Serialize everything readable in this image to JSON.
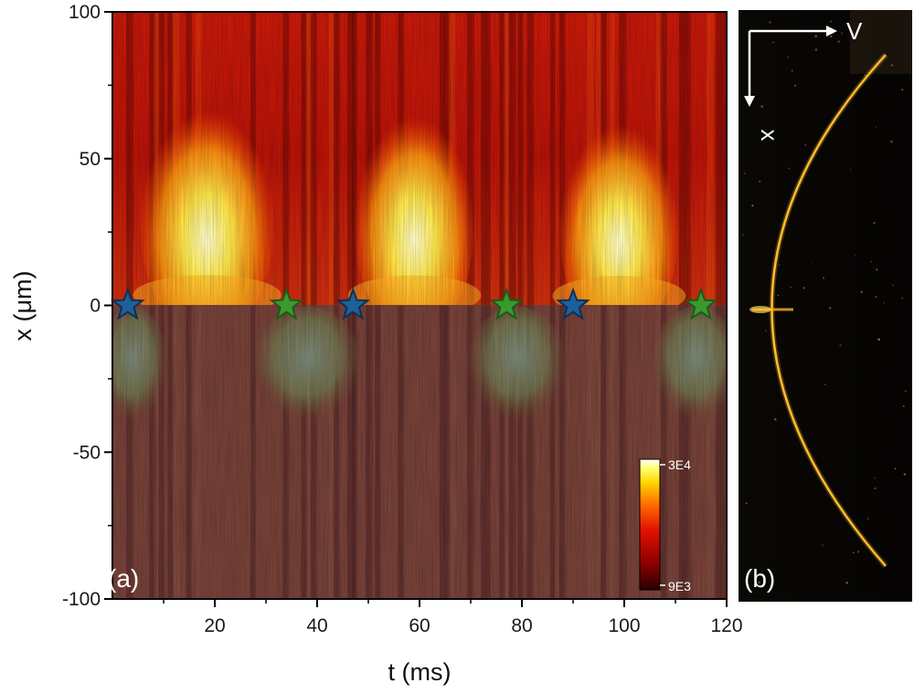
{
  "chart_data": [
    {
      "type": "heatmap",
      "panel_label": "(a)",
      "xlabel": "t (ms)",
      "ylabel": "x (μm)",
      "xlim": [
        0,
        120
      ],
      "ylim": [
        -100,
        100
      ],
      "x_ticks": [
        "20",
        "40",
        "60",
        "80",
        "100",
        "120"
      ],
      "x_tick_values": [
        20,
        40,
        60,
        80,
        100,
        120
      ],
      "y_ticks": [
        "100",
        "50",
        "0",
        "-50",
        "-100"
      ],
      "y_tick_values": [
        100,
        50,
        0,
        -50,
        -100
      ],
      "colorbar": {
        "max_label": "3E4",
        "min_label": "9E3",
        "range": [
          9000,
          30000
        ]
      },
      "lower_half_overlay": "dimmed (x < 0)",
      "bright_regions_x_positive": [
        {
          "t_range": [
            9,
            28
          ],
          "x_range": [
            0,
            60
          ]
        },
        {
          "t_range": [
            51,
            67
          ],
          "x_range": [
            0,
            58
          ]
        },
        {
          "t_range": [
            91,
            107
          ],
          "x_range": [
            0,
            55
          ]
        }
      ],
      "markers": [
        {
          "t": 3,
          "x": 0,
          "color": "blue"
        },
        {
          "t": 34,
          "x": 0,
          "color": "green"
        },
        {
          "t": 47,
          "x": 0,
          "color": "blue"
        },
        {
          "t": 77,
          "x": 0,
          "color": "green"
        },
        {
          "t": 90,
          "x": 0,
          "color": "blue"
        },
        {
          "t": 115,
          "x": 0,
          "color": "green"
        }
      ]
    },
    {
      "type": "other",
      "panel_label": "(b)",
      "axis_labels": {
        "horizontal": "V",
        "vertical": "x"
      }
    }
  ],
  "colors": {
    "star_blue": "#1f5f9a",
    "star_green": "#3a9a2e",
    "star_stroke_blue": "#0f2f55",
    "star_stroke_green": "#1d5a1a",
    "curve": "#ffb020"
  }
}
